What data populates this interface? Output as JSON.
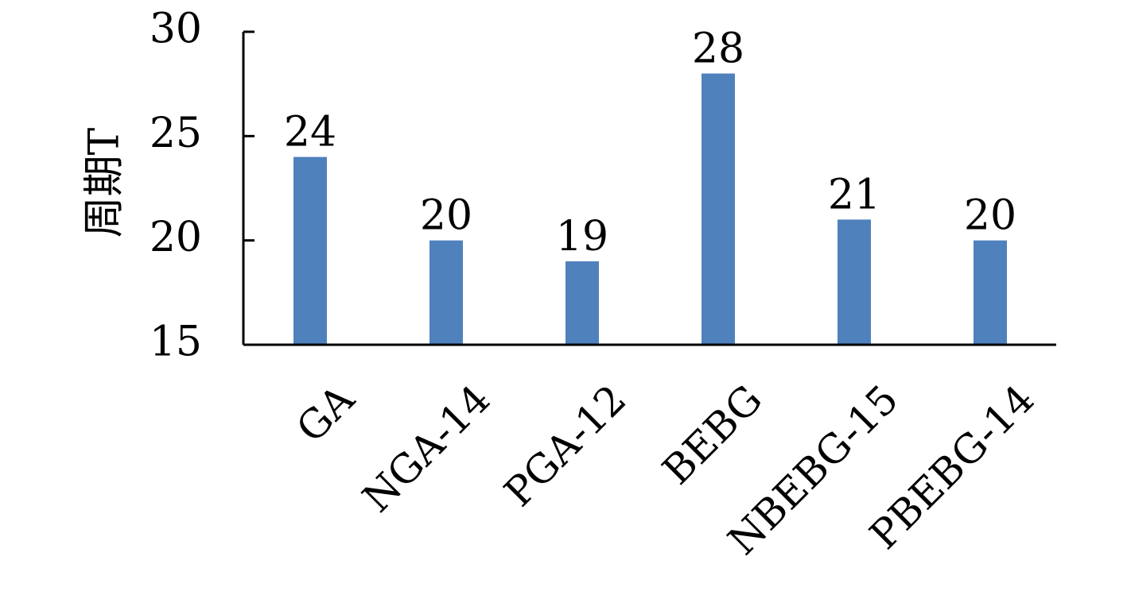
{
  "chart_data": {
    "type": "bar",
    "categories": [
      "GA",
      "NGA-14",
      "PGA-12",
      "BEBG",
      "NBEBG-15",
      "PBEBG-14"
    ],
    "values": [
      24,
      20,
      19,
      28,
      21,
      20
    ],
    "data_labels": [
      "24",
      "20",
      "19",
      "28",
      "21",
      "20"
    ],
    "title": "",
    "xlabel": "",
    "ylabel": "周期T",
    "ylim": [
      15,
      30
    ],
    "yticks": [
      15,
      20,
      25,
      30
    ],
    "ytick_labels": [
      "15",
      "20",
      "25",
      "30"
    ],
    "grid": false,
    "legend": "none",
    "bar_color": "#4f81bd"
  }
}
